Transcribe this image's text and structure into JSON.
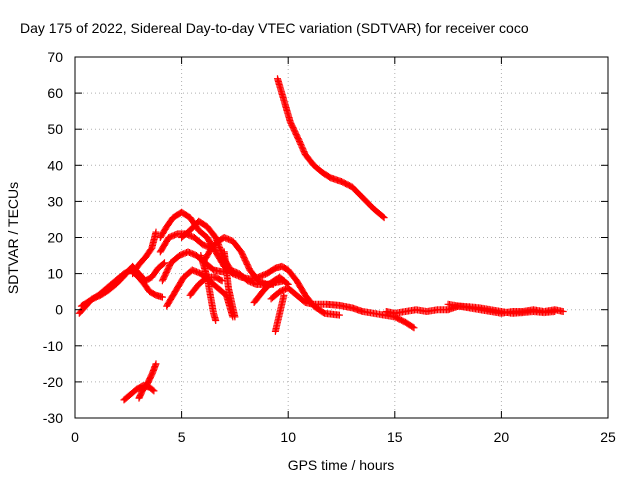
{
  "chart_data": {
    "type": "scatter",
    "title": "Day 175 of 2022, Sidereal Day-to-day VTEC variation (SDTVAR) for receiver coco",
    "xlabel": "GPS time / hours",
    "ylabel": "SDTVAR / TECUs",
    "xlim": [
      0,
      25
    ],
    "ylim": [
      -30,
      70
    ],
    "xticks": [
      0,
      5,
      10,
      15,
      20,
      25
    ],
    "yticks": [
      -30,
      -20,
      -10,
      0,
      10,
      20,
      30,
      40,
      50,
      60,
      70
    ],
    "grid": true,
    "marker": "+",
    "color": "#ff0000",
    "series": [
      {
        "name": "track-1",
        "points": [
          [
            0.2,
            -1
          ],
          [
            0.5,
            1
          ],
          [
            0.8,
            3
          ],
          [
            1.2,
            4
          ],
          [
            1.6,
            5.5
          ],
          [
            2.0,
            7.5
          ],
          [
            2.4,
            10
          ],
          [
            2.7,
            12
          ],
          [
            3.0,
            10
          ],
          [
            3.3,
            8
          ],
          [
            3.6,
            9
          ],
          [
            3.9,
            11.5
          ],
          [
            4.2,
            13
          ]
        ]
      },
      {
        "name": "track-2",
        "points": [
          [
            0.3,
            1
          ],
          [
            0.7,
            2.5
          ],
          [
            1.1,
            4
          ],
          [
            1.5,
            6
          ],
          [
            1.9,
            8
          ],
          [
            2.3,
            10
          ],
          [
            2.6,
            11
          ],
          [
            2.9,
            9.5
          ],
          [
            3.2,
            7.5
          ],
          [
            3.5,
            5
          ],
          [
            3.8,
            4
          ],
          [
            4.1,
            3.5
          ]
        ]
      },
      {
        "name": "track-3",
        "points": [
          [
            2.7,
            10
          ],
          [
            3.0,
            12.5
          ],
          [
            3.3,
            14.5
          ],
          [
            3.6,
            17
          ],
          [
            3.8,
            21.5
          ]
        ]
      },
      {
        "name": "track-4",
        "points": [
          [
            2.3,
            -25
          ],
          [
            2.6,
            -23.5
          ],
          [
            2.9,
            -22
          ],
          [
            3.2,
            -21
          ],
          [
            3.5,
            -21.5
          ],
          [
            3.7,
            -22.5
          ]
        ]
      },
      {
        "name": "track-5",
        "points": [
          [
            3.0,
            -24.5
          ],
          [
            3.2,
            -22
          ],
          [
            3.4,
            -20.5
          ],
          [
            3.6,
            -18
          ],
          [
            3.8,
            -15
          ]
        ]
      },
      {
        "name": "track-6",
        "points": [
          [
            4.3,
            1
          ],
          [
            4.7,
            5
          ],
          [
            5.1,
            9
          ],
          [
            5.5,
            11
          ],
          [
            5.9,
            10
          ],
          [
            6.3,
            8
          ],
          [
            6.7,
            6
          ],
          [
            7.1,
            4
          ],
          [
            7.4,
            -2
          ]
        ]
      },
      {
        "name": "track-7",
        "points": [
          [
            4.0,
            20
          ],
          [
            4.3,
            23
          ],
          [
            4.6,
            25.5
          ],
          [
            5.0,
            27
          ],
          [
            5.4,
            25.5
          ],
          [
            5.8,
            22
          ],
          [
            6.2,
            20
          ],
          [
            6.6,
            16
          ],
          [
            7.0,
            12
          ],
          [
            7.4,
            10
          ],
          [
            7.8,
            9
          ],
          [
            8.2,
            8.5
          ],
          [
            8.6,
            9
          ],
          [
            9.0,
            10
          ],
          [
            9.4,
            11.5
          ],
          [
            9.7,
            12
          ],
          [
            10.0,
            11
          ],
          [
            10.4,
            8
          ],
          [
            10.8,
            4
          ],
          [
            11.2,
            1
          ],
          [
            11.7,
            -1
          ],
          [
            12.4,
            -1.5
          ]
        ]
      },
      {
        "name": "track-8",
        "points": [
          [
            4.1,
            8
          ],
          [
            4.5,
            13
          ],
          [
            4.9,
            15
          ],
          [
            5.3,
            16
          ],
          [
            5.7,
            15
          ],
          [
            6.1,
            13
          ],
          [
            6.5,
            11
          ],
          [
            6.9,
            10.5
          ],
          [
            7.3,
            11
          ],
          [
            7.7,
            10
          ],
          [
            8.1,
            8
          ],
          [
            8.5,
            7
          ],
          [
            8.9,
            7
          ],
          [
            9.3,
            7
          ]
        ]
      },
      {
        "name": "track-9",
        "points": [
          [
            4.0,
            16
          ],
          [
            4.4,
            20
          ],
          [
            4.8,
            21
          ],
          [
            5.2,
            21
          ],
          [
            5.6,
            20
          ],
          [
            6.0,
            18
          ],
          [
            6.4,
            17
          ]
        ]
      },
      {
        "name": "track-10",
        "points": [
          [
            5.0,
            20
          ],
          [
            5.4,
            22
          ],
          [
            5.8,
            24.5
          ],
          [
            6.2,
            23
          ],
          [
            6.6,
            20
          ],
          [
            7.0,
            14
          ],
          [
            7.4,
            10
          ]
        ]
      },
      {
        "name": "track-11",
        "points": [
          [
            5.4,
            4
          ],
          [
            5.8,
            7
          ],
          [
            6.2,
            9
          ],
          [
            6.6,
            9
          ],
          [
            6.9,
            8
          ]
        ]
      },
      {
        "name": "track-12",
        "points": [
          [
            6.0,
            13
          ],
          [
            6.3,
            16
          ],
          [
            6.6,
            18.5
          ],
          [
            7.0,
            20
          ],
          [
            7.4,
            19
          ],
          [
            7.8,
            16
          ],
          [
            8.2,
            11
          ],
          [
            8.6,
            8
          ],
          [
            9.0,
            7
          ],
          [
            9.4,
            7.5
          ],
          [
            9.8,
            8
          ]
        ]
      },
      {
        "name": "track-13",
        "points": [
          [
            5.9,
            15
          ],
          [
            6.2,
            9
          ],
          [
            6.5,
            -1
          ],
          [
            6.6,
            -3
          ]
        ]
      },
      {
        "name": "track-14",
        "points": [
          [
            7.0,
            16
          ],
          [
            7.2,
            6
          ],
          [
            7.5,
            -2
          ]
        ]
      },
      {
        "name": "track-15",
        "points": [
          [
            8.4,
            2
          ],
          [
            8.8,
            5
          ],
          [
            9.2,
            7.5
          ],
          [
            9.6,
            9
          ],
          [
            10.0,
            7
          ]
        ]
      },
      {
        "name": "track-16",
        "points": [
          [
            9.4,
            -6
          ],
          [
            9.6,
            -1
          ],
          [
            9.8,
            4
          ]
        ]
      },
      {
        "name": "track-17",
        "points": [
          [
            9.5,
            64
          ],
          [
            9.8,
            58
          ],
          [
            10.1,
            52
          ],
          [
            10.5,
            47
          ],
          [
            10.8,
            43
          ],
          [
            11.2,
            40
          ],
          [
            11.6,
            38
          ],
          [
            12.0,
            36.5
          ],
          [
            12.5,
            35.5
          ],
          [
            13.0,
            34
          ],
          [
            13.5,
            31
          ],
          [
            14.0,
            28
          ],
          [
            14.5,
            25.5
          ]
        ]
      },
      {
        "name": "track-18",
        "points": [
          [
            9.2,
            3
          ],
          [
            9.6,
            5
          ],
          [
            10.0,
            6
          ],
          [
            10.4,
            4
          ],
          [
            10.8,
            2
          ],
          [
            11.2,
            1.5
          ],
          [
            11.8,
            1.5
          ],
          [
            12.4,
            1.2
          ],
          [
            13.0,
            0.5
          ],
          [
            13.5,
            -0.5
          ],
          [
            14.0,
            -1
          ],
          [
            14.5,
            -1.5
          ],
          [
            15.0,
            -2
          ],
          [
            15.5,
            -3.5
          ],
          [
            15.9,
            -5
          ]
        ]
      },
      {
        "name": "track-19",
        "points": [
          [
            14.6,
            -0.5
          ],
          [
            15.0,
            -1
          ],
          [
            15.5,
            -0.5
          ],
          [
            16.0,
            0
          ],
          [
            16.5,
            -0.5
          ],
          [
            17.0,
            0
          ],
          [
            17.5,
            0
          ],
          [
            18.0,
            1
          ],
          [
            18.5,
            0.5
          ],
          [
            19.0,
            0
          ],
          [
            19.5,
            -0.5
          ],
          [
            20.0,
            -1
          ],
          [
            20.5,
            -0.5
          ],
          [
            21.0,
            -0.5
          ],
          [
            21.5,
            0
          ],
          [
            22.0,
            -0.5
          ],
          [
            22.5,
            0
          ],
          [
            22.9,
            -0.5
          ]
        ]
      },
      {
        "name": "track-20",
        "points": [
          [
            17.5,
            1.5
          ],
          [
            18.0,
            1
          ],
          [
            18.5,
            0.8
          ],
          [
            19.0,
            0.5
          ],
          [
            19.5,
            0
          ],
          [
            20.0,
            -0.5
          ],
          [
            20.5,
            -1
          ],
          [
            21.0,
            -0.8
          ],
          [
            21.5,
            -0.5
          ],
          [
            22.0,
            -0.8
          ],
          [
            22.5,
            -0.5
          ]
        ]
      }
    ]
  }
}
